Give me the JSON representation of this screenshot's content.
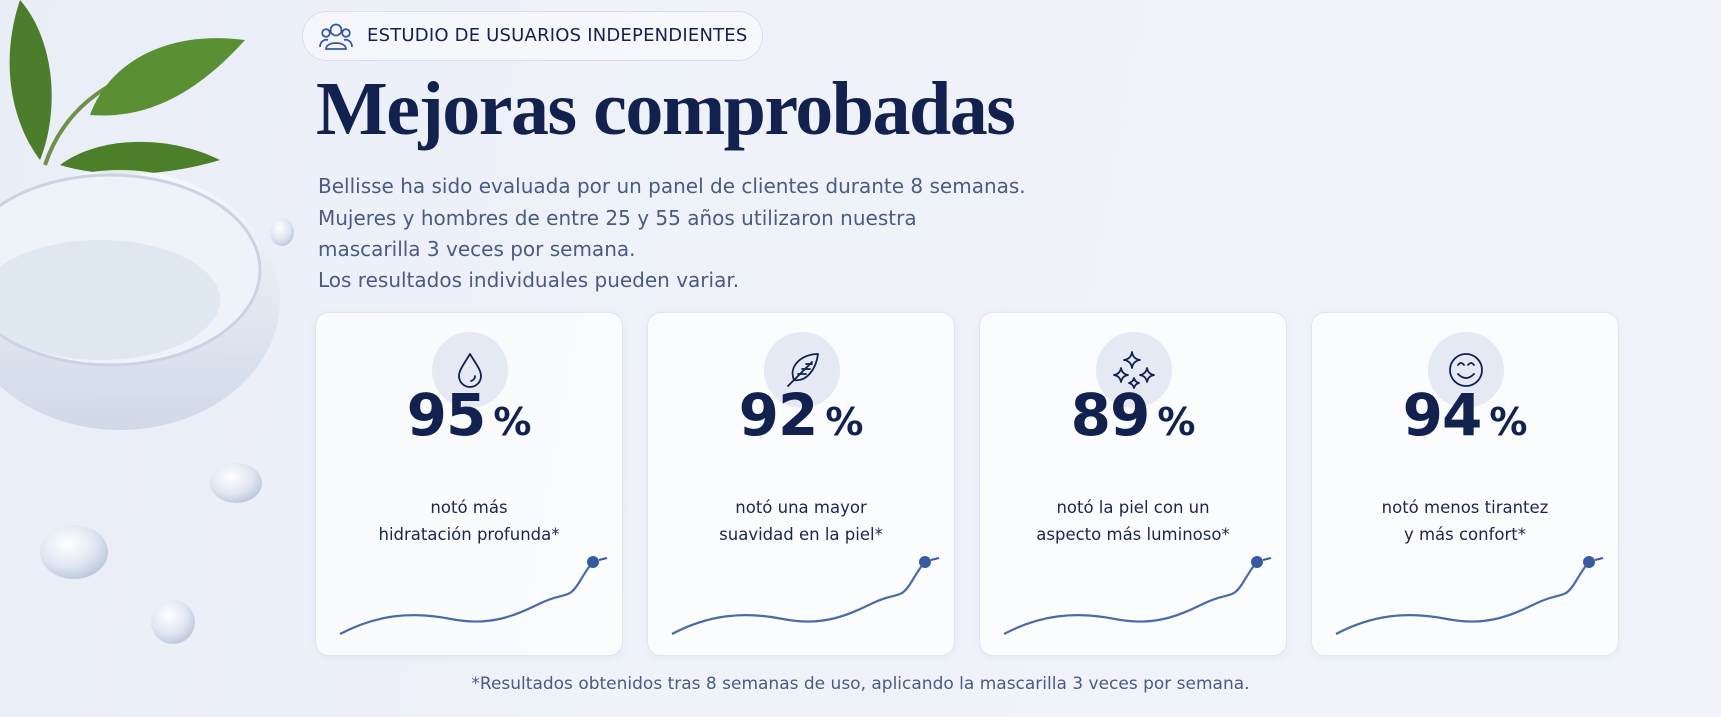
{
  "badge": "ESTUDIO DE USUARIOS INDEPENDIENTES",
  "title": "Mejoras comprobadas",
  "intro": [
    "Bellisse ha sido evaluada por un panel de clientes durante 8 semanas.",
    "Mujeres y hombres de entre 25 y 55 años utilizaron nuestra",
    "mascarilla 3 veces por semana.",
    "Los resultados individuales pueden variar."
  ],
  "stats": [
    {
      "value": 95,
      "unit": "%",
      "caption": [
        "notó más",
        "hidratación profunda*"
      ]
    },
    {
      "value": 92,
      "unit": "%",
      "caption": [
        "notó una mayor",
        "suavidad en la piel*"
      ]
    },
    {
      "value": 89,
      "unit": "%",
      "caption": [
        "notó la piel con un",
        "aspecto más luminoso*"
      ]
    },
    {
      "value": 94,
      "unit": "%",
      "caption": [
        "notó menos tirantez",
        "y más confort*"
      ]
    }
  ],
  "footnote": "*Resultados obtenidos tras 8 semanas de uso, aplicando la mascarilla 3 veces por semana."
}
